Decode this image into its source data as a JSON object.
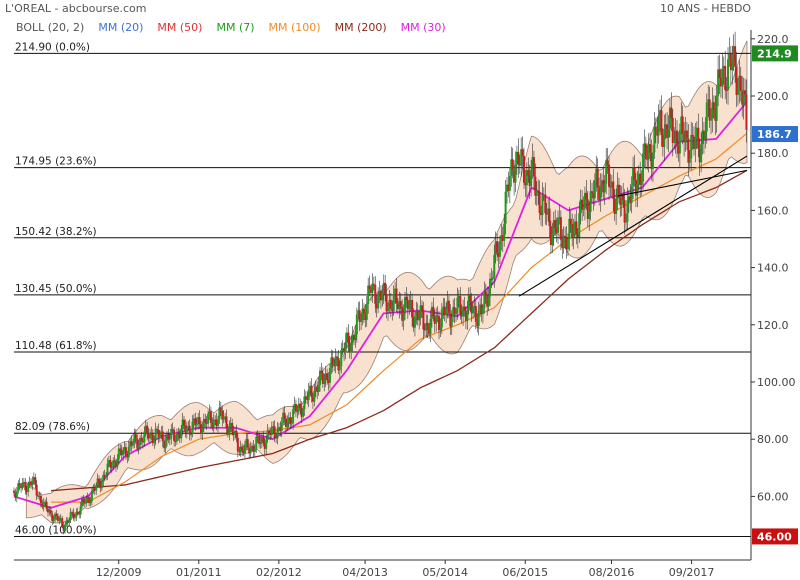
{
  "header": {
    "title": "L'OREAL - abcbourse.com",
    "period": "10 ANS - HEBDO"
  },
  "legend": [
    {
      "label": "BOLL (20, 2)",
      "color": "#555555"
    },
    {
      "label": "MM (20)",
      "color": "#3f6fd8"
    },
    {
      "label": "MM (50)",
      "color": "#e03030"
    },
    {
      "label": "MM (7)",
      "color": "#1f9a1f"
    },
    {
      "label": "MM (100)",
      "color": "#f08a24"
    },
    {
      "label": "MM (200)",
      "color": "#8b2a1a"
    },
    {
      "label": "MM (30)",
      "color": "#e020e0"
    }
  ],
  "chart_data": {
    "type": "candlestick",
    "x_range": [
      "2008-07",
      "2018-06"
    ],
    "x_ticks": [
      "12/2009",
      "01/2011",
      "02/2012",
      "04/2013",
      "05/2014",
      "06/2015",
      "08/2016",
      "09/2017"
    ],
    "y_ticks": [
      "220.0",
      "200.0",
      "180.0",
      "160.0",
      "140.0",
      "120.0",
      "100.00",
      "80.00",
      "60.00"
    ],
    "ylim": [
      42,
      225
    ],
    "grid": false,
    "fibonacci_levels": [
      {
        "label": "214.90 (0.0%)",
        "value": 214.9
      },
      {
        "label": "174.95 (23.6%)",
        "value": 174.95
      },
      {
        "label": "150.42 (38.2%)",
        "value": 150.42
      },
      {
        "label": "130.45 (50.0%)",
        "value": 130.45
      },
      {
        "label": "110.48 (61.8%)",
        "value": 110.48
      },
      {
        "label": "82.09 (78.6%)",
        "value": 82.09
      },
      {
        "label": "46.00 (100.0%)",
        "value": 46.0
      }
    ],
    "price_badges": [
      {
        "label": "214.9",
        "value": 214.9,
        "color": "#1f8a1f"
      },
      {
        "label": "186.7",
        "value": 186.7,
        "color": "#2f6fd0"
      },
      {
        "label": "46.00",
        "value": 46.0,
        "color": "#c81010"
      }
    ],
    "trendlines": [
      {
        "from": [
          "2015-05",
          130
        ],
        "to": [
          "2018-06",
          179
        ]
      },
      {
        "from": [
          "2016-09",
          165
        ],
        "to": [
          "2018-06",
          174
        ]
      }
    ],
    "series": [
      {
        "name": "Close",
        "points": [
          [
            "2008-07",
            62
          ],
          [
            "2008-10",
            65
          ],
          [
            "2008-12",
            56
          ],
          [
            "2009-03",
            50
          ],
          [
            "2009-05",
            54
          ],
          [
            "2009-08",
            62
          ],
          [
            "2009-11",
            72
          ],
          [
            "2010-02",
            78
          ],
          [
            "2010-05",
            82
          ],
          [
            "2010-08",
            80
          ],
          [
            "2010-11",
            84
          ],
          [
            "2011-02",
            86
          ],
          [
            "2011-05",
            88
          ],
          [
            "2011-08",
            76
          ],
          [
            "2011-11",
            79
          ],
          [
            "2012-02",
            84
          ],
          [
            "2012-05",
            90
          ],
          [
            "2012-08",
            98
          ],
          [
            "2012-11",
            106
          ],
          [
            "2013-02",
            116
          ],
          [
            "2013-05",
            132
          ],
          [
            "2013-08",
            128
          ],
          [
            "2013-11",
            126
          ],
          [
            "2014-02",
            120
          ],
          [
            "2014-05",
            124
          ],
          [
            "2014-08",
            126
          ],
          [
            "2014-11",
            124
          ],
          [
            "2015-02",
            150
          ],
          [
            "2015-04",
            178
          ],
          [
            "2015-07",
            172
          ],
          [
            "2015-10",
            155
          ],
          [
            "2016-01",
            150
          ],
          [
            "2016-04",
            163
          ],
          [
            "2016-07",
            172
          ],
          [
            "2016-10",
            160
          ],
          [
            "2017-01",
            175
          ],
          [
            "2017-04",
            190
          ],
          [
            "2017-07",
            186
          ],
          [
            "2017-10",
            182
          ],
          [
            "2018-01",
            200
          ],
          [
            "2018-03",
            212
          ],
          [
            "2018-05",
            205
          ],
          [
            "2018-06",
            186.7
          ]
        ]
      },
      {
        "name": "MM (30)",
        "points": [
          [
            "2008-07",
            60
          ],
          [
            "2009-01",
            56
          ],
          [
            "2009-07",
            60
          ],
          [
            "2010-01",
            74
          ],
          [
            "2010-07",
            81
          ],
          [
            "2011-01",
            84
          ],
          [
            "2011-07",
            84
          ],
          [
            "2012-01",
            80
          ],
          [
            "2012-07",
            88
          ],
          [
            "2013-01",
            104
          ],
          [
            "2013-07",
            124
          ],
          [
            "2014-01",
            125
          ],
          [
            "2014-07",
            123
          ],
          [
            "2015-01",
            135
          ],
          [
            "2015-07",
            168
          ],
          [
            "2016-01",
            160
          ],
          [
            "2016-07",
            164
          ],
          [
            "2017-01",
            168
          ],
          [
            "2017-07",
            184
          ],
          [
            "2018-01",
            185
          ],
          [
            "2018-06",
            198
          ]
        ]
      },
      {
        "name": "MM (100)",
        "points": [
          [
            "2009-01",
            58
          ],
          [
            "2009-07",
            58
          ],
          [
            "2010-01",
            65
          ],
          [
            "2010-07",
            74
          ],
          [
            "2011-01",
            80
          ],
          [
            "2011-07",
            82
          ],
          [
            "2012-01",
            83
          ],
          [
            "2012-07",
            85
          ],
          [
            "2013-01",
            92
          ],
          [
            "2013-07",
            104
          ],
          [
            "2014-01",
            115
          ],
          [
            "2014-07",
            120
          ],
          [
            "2015-01",
            126
          ],
          [
            "2015-07",
            140
          ],
          [
            "2016-01",
            150
          ],
          [
            "2016-07",
            158
          ],
          [
            "2017-01",
            165
          ],
          [
            "2017-07",
            172
          ],
          [
            "2018-01",
            178
          ],
          [
            "2018-06",
            187
          ]
        ]
      },
      {
        "name": "MM (200)",
        "points": [
          [
            "2009-01",
            62
          ],
          [
            "2010-01",
            64
          ],
          [
            "2011-01",
            70
          ],
          [
            "2012-01",
            75
          ],
          [
            "2012-07",
            80
          ],
          [
            "2013-01",
            84
          ],
          [
            "2013-07",
            90
          ],
          [
            "2014-01",
            98
          ],
          [
            "2014-07",
            104
          ],
          [
            "2015-01",
            112
          ],
          [
            "2015-07",
            124
          ],
          [
            "2016-01",
            136
          ],
          [
            "2016-07",
            146
          ],
          [
            "2017-01",
            155
          ],
          [
            "2017-07",
            163
          ],
          [
            "2018-01",
            168
          ],
          [
            "2018-06",
            174
          ]
        ]
      }
    ]
  }
}
